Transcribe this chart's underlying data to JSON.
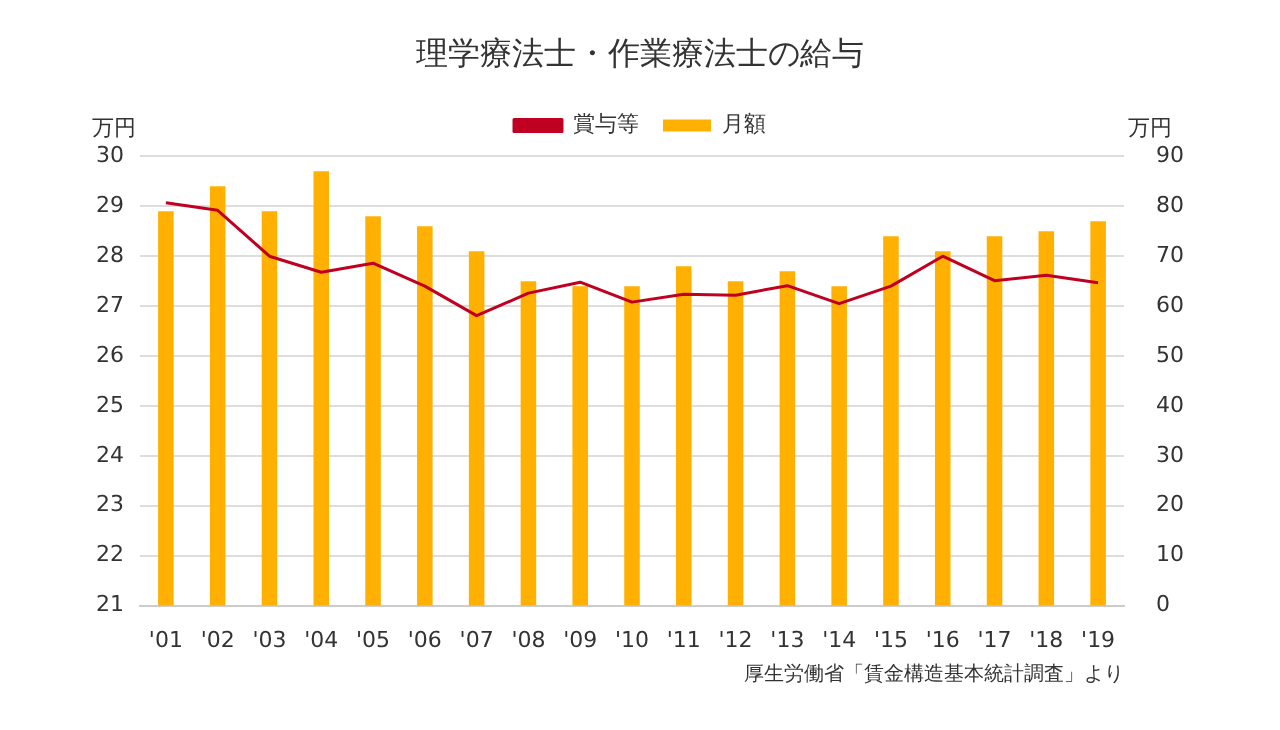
{
  "chart_data": {
    "type": "bar",
    "title": "理学療法士・作業療法士の給与",
    "ylabel": "万円",
    "y2label": "万円",
    "categories": [
      "'01",
      "'02",
      "'03",
      "'04",
      "'05",
      "'06",
      "'07",
      "'08",
      "'09",
      "'10",
      "'11",
      "'12",
      "'13",
      "'14",
      "'15",
      "'16",
      "'17",
      "'18",
      "'19"
    ],
    "series": [
      {
        "name": "月額",
        "color": "#ffb000",
        "values": [
          28.9,
          29.4,
          28.9,
          29.7,
          28.8,
          28.6,
          28.1,
          27.5,
          27.4,
          27.4,
          27.8,
          27.5,
          27.7,
          27.4,
          28.4,
          28.1,
          28.4,
          28.5,
          28.7
        ]
      },
      {
        "name": "賞与等",
        "type": "line",
        "axis": "y2",
        "color": "#c00020",
        "values": [
          80.7,
          79.2,
          70.0,
          66.8,
          68.6,
          64.0,
          58.1,
          62.6,
          64.8,
          60.8,
          62.4,
          62.2,
          64.1,
          60.5,
          64.0,
          70.0,
          65.1,
          66.2,
          64.7
        ]
      }
    ],
    "ylim": [
      21,
      30
    ],
    "yticks": [
      21,
      22,
      23,
      24,
      25,
      26,
      27,
      28,
      29,
      30
    ],
    "y2lim": [
      0,
      90
    ],
    "y2ticks": [
      0,
      10,
      20,
      30,
      40,
      50,
      60,
      70,
      80,
      90
    ],
    "grid": "y",
    "legend": "top",
    "marker": "none",
    "line_style": "solid",
    "annotations": [
      "厚生労働省「賃金構造基本統計調査」より"
    ]
  }
}
